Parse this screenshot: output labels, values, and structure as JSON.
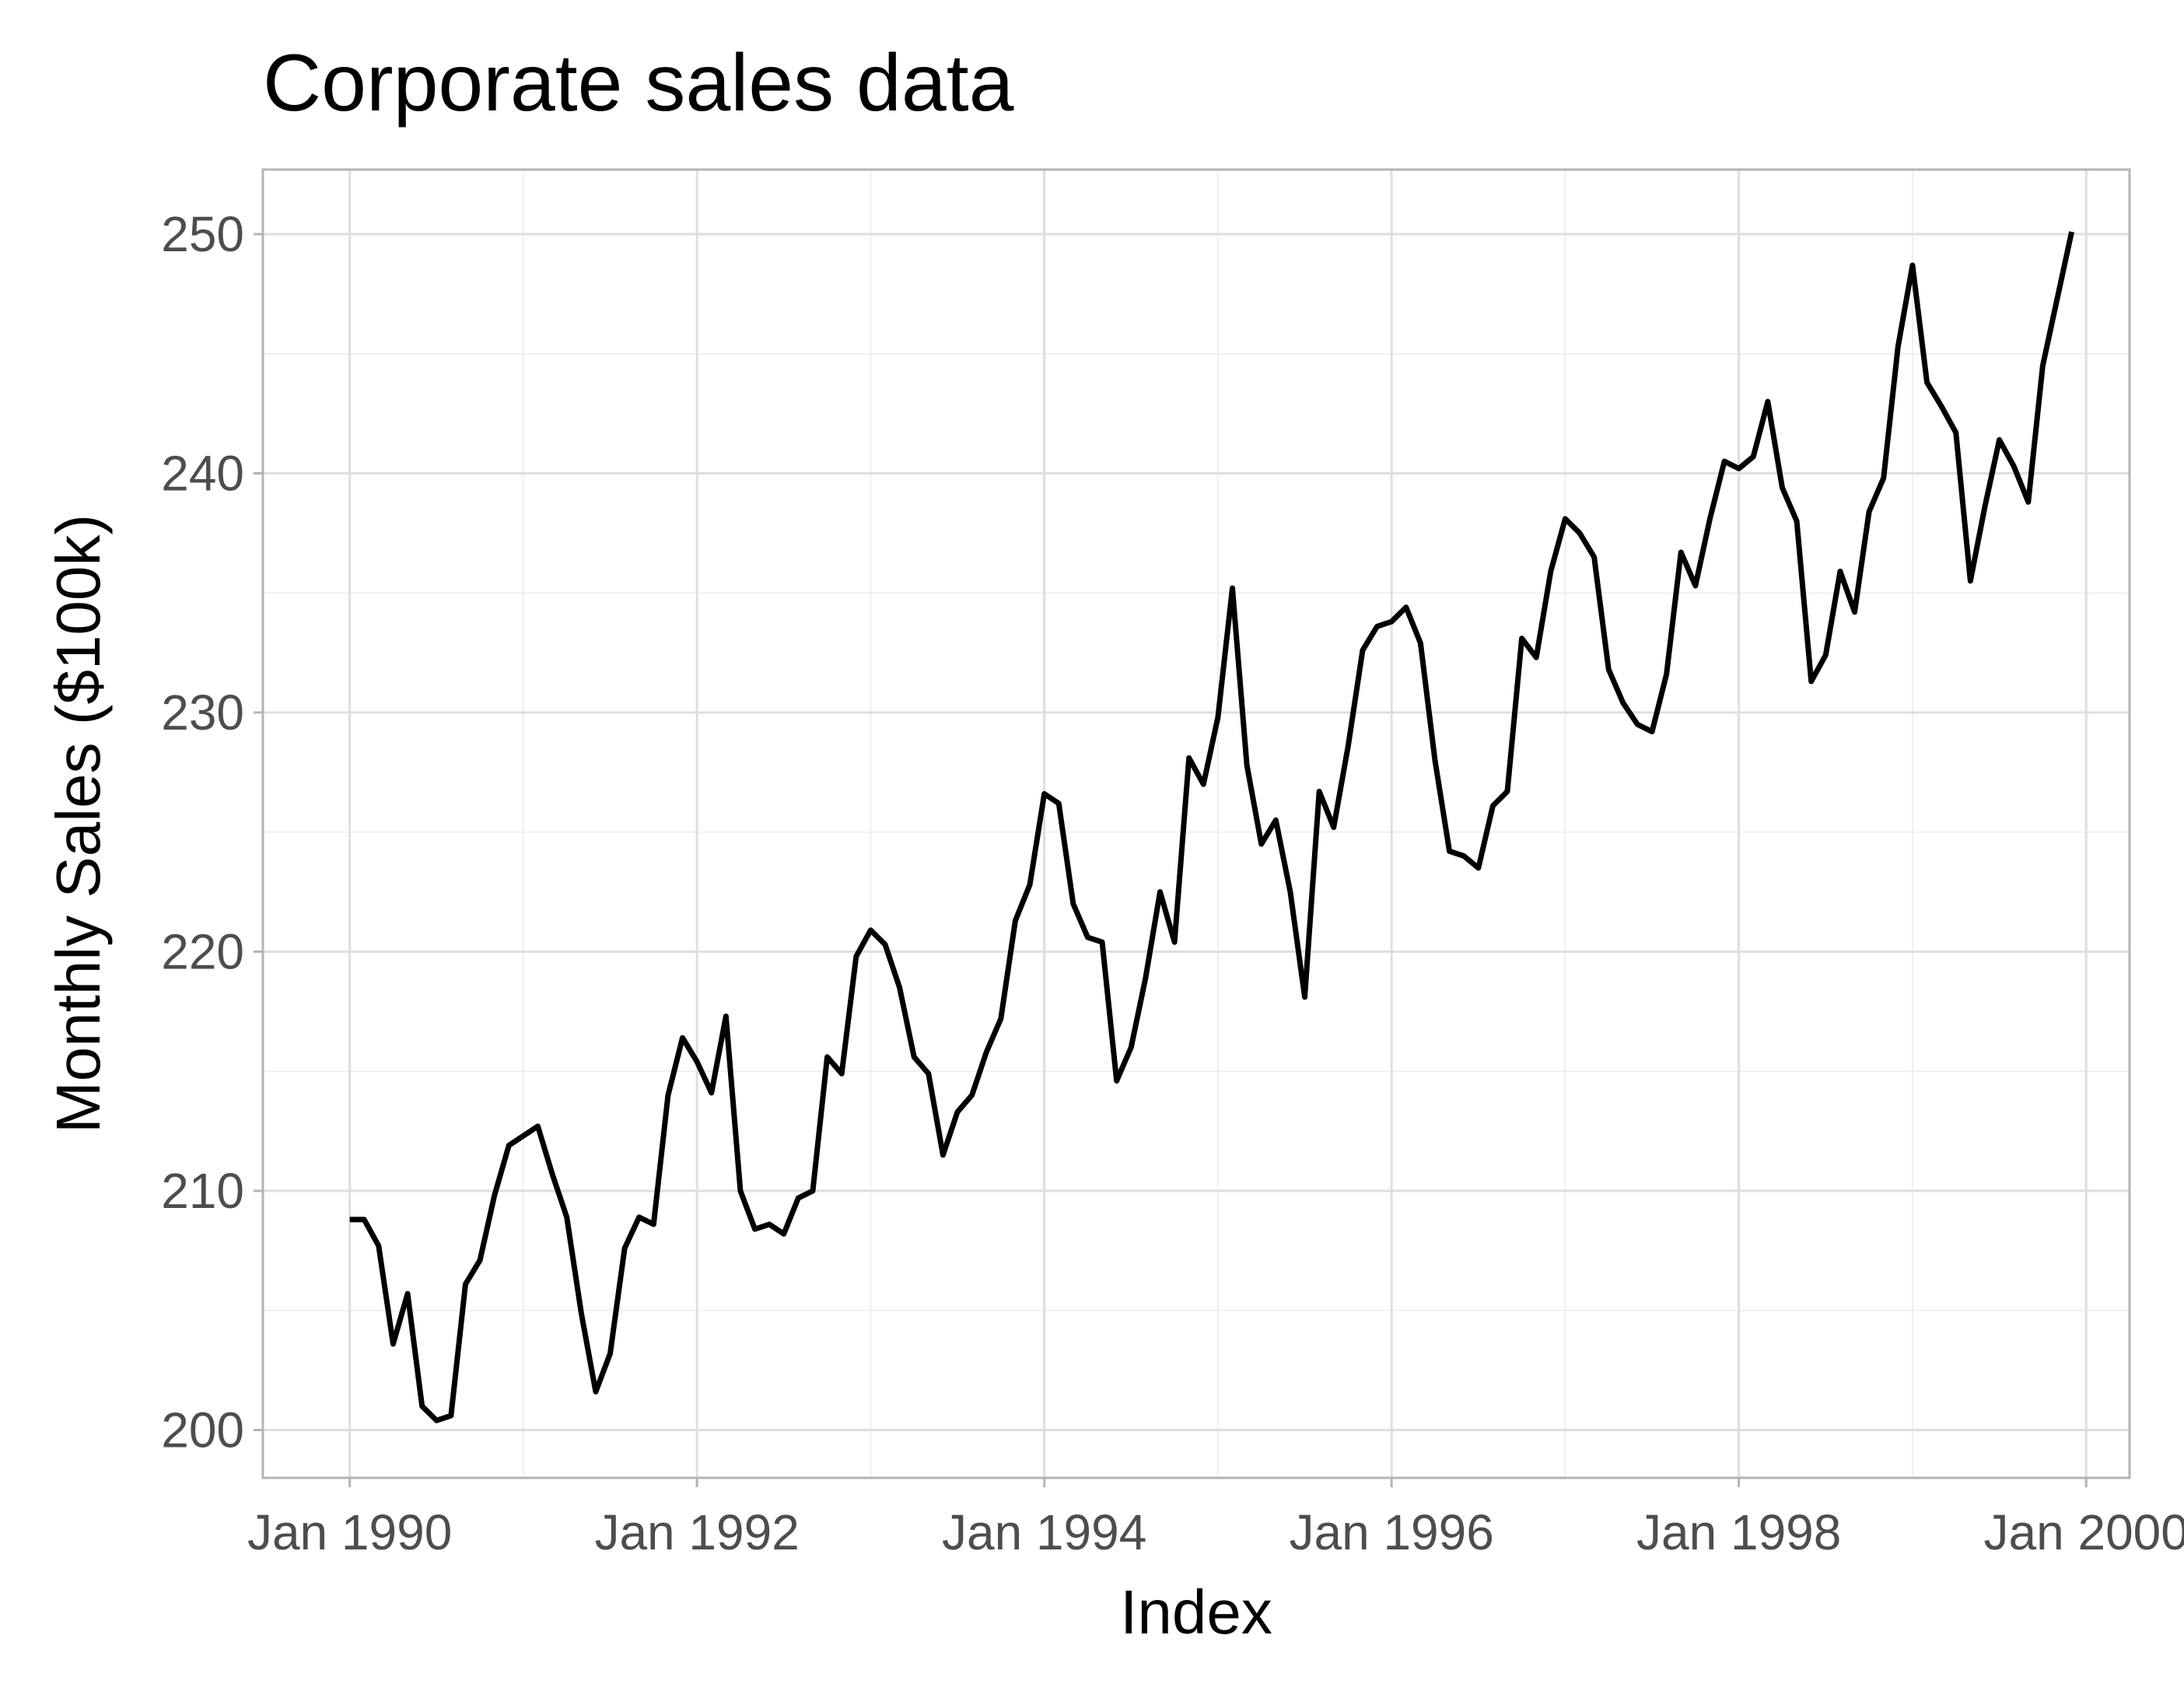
{
  "chart_data": {
    "type": "line",
    "title": "Corporate sales data",
    "xlabel": "Index",
    "ylabel": "Monthly Sales ($100k)",
    "x_unit": "month",
    "x_start": "1990-01",
    "x_ticks": [
      {
        "value": "1990-01",
        "label": "Jan 1990"
      },
      {
        "value": "1992-01",
        "label": "Jan 1992"
      },
      {
        "value": "1994-01",
        "label": "Jan 1994"
      },
      {
        "value": "1996-01",
        "label": "Jan 1996"
      },
      {
        "value": "1998-01",
        "label": "Jan 1998"
      },
      {
        "value": "2000-01",
        "label": "Jan 2000"
      }
    ],
    "y_ticks": [
      200,
      210,
      220,
      230,
      240,
      250
    ],
    "xlim": [
      "1989-07",
      "2000-04"
    ],
    "ylim": [
      198,
      252.7
    ],
    "grid": true,
    "colors": {
      "line": "#000000",
      "grid": "#dedede",
      "tick_text": "#4d4d4d"
    },
    "series": [
      {
        "values": [
          208.8,
          208.8,
          207.7,
          203.6,
          205.7,
          201.0,
          200.4,
          200.6,
          206.1,
          207.1,
          209.8,
          211.9,
          212.3,
          212.7,
          210.7,
          208.9,
          204.9,
          201.6,
          203.2,
          207.6,
          208.9,
          208.6,
          214.0,
          216.4,
          215.4,
          214.1,
          217.3,
          210.0,
          208.4,
          208.6,
          208.2,
          209.7,
          210.0,
          215.6,
          214.9,
          219.8,
          220.9,
          220.3,
          218.5,
          215.6,
          214.9,
          211.5,
          213.3,
          214.0,
          215.8,
          217.2,
          221.3,
          222.8,
          226.6,
          226.2,
          222.0,
          220.6,
          220.4,
          214.6,
          216.0,
          218.9,
          222.5,
          220.4,
          228.1,
          227.0,
          229.8,
          235.2,
          227.8,
          224.5,
          225.5,
          222.5,
          218.1,
          226.7,
          225.2,
          228.6,
          232.6,
          233.6,
          233.8,
          234.4,
          232.9,
          228.0,
          224.2,
          224.0,
          223.5,
          226.1,
          226.7,
          233.1,
          232.3,
          235.9,
          238.1,
          237.5,
          236.5,
          231.8,
          230.4,
          229.5,
          229.2,
          231.6,
          236.7,
          235.3,
          238.1,
          240.5,
          240.2,
          240.7,
          243.0,
          239.4,
          238.0,
          231.3,
          232.4,
          235.9,
          234.2,
          238.4,
          239.8,
          245.3,
          248.7,
          243.8,
          242.8,
          241.7,
          235.5,
          238.6,
          241.4,
          240.3,
          238.8,
          244.5,
          247.3,
          250.1
        ]
      }
    ]
  }
}
